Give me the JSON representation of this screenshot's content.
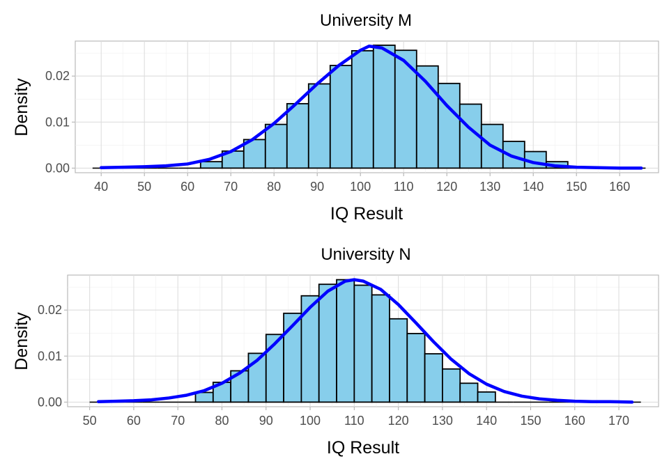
{
  "colors": {
    "bar_fill": "#87ceeb",
    "bar_border": "#000000",
    "density_curve": "#0000ff"
  },
  "chart_data": [
    {
      "type": "bar",
      "title": "University M",
      "xlabel": "IQ Result",
      "ylabel": "Density",
      "grid": true,
      "xlim": [
        34,
        169
      ],
      "ylim": [
        -0.001,
        0.0276
      ],
      "xticks": [
        40,
        50,
        60,
        70,
        80,
        90,
        100,
        110,
        120,
        130,
        140,
        150,
        160
      ],
      "xtick_labels": [
        "40",
        "50",
        "60",
        "70",
        "80",
        "90",
        "100",
        "110",
        "120",
        "130",
        "140",
        "150",
        "160"
      ],
      "yticks": [
        0,
        0.01,
        0.02
      ],
      "ytick_labels": [
        "0.00",
        "0.01",
        "0.02"
      ],
      "histogram": {
        "bin_edges": [
          38,
          43,
          48,
          53,
          58,
          63,
          68,
          73,
          78,
          83,
          88,
          93,
          98,
          103,
          108,
          113,
          118,
          123,
          128,
          133,
          138,
          143,
          148,
          153,
          158,
          163,
          166
        ],
        "densities": [
          0,
          0,
          0,
          0,
          0,
          0.0014,
          0.0037,
          0.0062,
          0.0095,
          0.014,
          0.0183,
          0.0223,
          0.0255,
          0.0267,
          0.0256,
          0.0222,
          0.0184,
          0.0139,
          0.0095,
          0.0058,
          0.0036,
          0.0014,
          0,
          0,
          0,
          0
        ]
      },
      "density_curve": {
        "x": [
          40,
          45,
          50,
          55,
          60,
          65,
          70,
          75,
          80,
          85,
          90,
          95,
          100,
          102,
          105,
          110,
          115,
          120,
          125,
          130,
          135,
          140,
          145,
          150,
          155,
          160,
          165
        ],
        "y": [
          0.0001,
          0.0002,
          0.0003,
          0.0005,
          0.0009,
          0.0019,
          0.0036,
          0.0062,
          0.0097,
          0.0139,
          0.0183,
          0.0223,
          0.0256,
          0.0265,
          0.0261,
          0.0234,
          0.0189,
          0.0136,
          0.0089,
          0.005,
          0.0026,
          0.0012,
          0.0005,
          0.0002,
          0.0001,
          0,
          0
        ]
      }
    },
    {
      "type": "bar",
      "title": "University N",
      "xlabel": "IQ Result",
      "ylabel": "Density",
      "grid": true,
      "xlim": [
        45,
        179
      ],
      "ylim": [
        -0.001,
        0.0276
      ],
      "xticks": [
        50,
        60,
        70,
        80,
        90,
        100,
        110,
        120,
        130,
        140,
        150,
        160,
        170
      ],
      "xtick_labels": [
        "50",
        "60",
        "70",
        "80",
        "90",
        "100",
        "110",
        "120",
        "130",
        "140",
        "150",
        "160",
        "170"
      ],
      "yticks": [
        0,
        0.01,
        0.02
      ],
      "ytick_labels": [
        "0.00",
        "0.01",
        "0.02"
      ],
      "histogram": {
        "bin_edges": [
          50,
          54,
          58,
          62,
          66,
          70,
          74,
          78,
          82,
          86,
          90,
          94,
          98,
          102,
          106,
          110,
          114,
          118,
          122,
          126,
          130,
          134,
          138,
          142,
          146,
          150,
          154,
          158,
          162,
          166,
          170,
          175
        ],
        "densities": [
          0,
          0,
          0,
          0,
          0,
          0,
          0.0021,
          0.0043,
          0.0068,
          0.0106,
          0.0147,
          0.0193,
          0.0231,
          0.0256,
          0.0266,
          0.0254,
          0.0233,
          0.0181,
          0.0149,
          0.0105,
          0.0072,
          0.0041,
          0.0022,
          0,
          0,
          0,
          0,
          0,
          0,
          0,
          0
        ]
      },
      "density_curve": {
        "x": [
          52,
          56,
          60,
          64,
          68,
          72,
          76,
          80,
          84,
          88,
          92,
          96,
          100,
          104,
          108,
          110,
          112,
          116,
          120,
          124,
          128,
          132,
          136,
          140,
          144,
          148,
          152,
          156,
          160,
          164,
          168,
          173
        ],
        "y": [
          0.0001,
          0.0002,
          0.0003,
          0.0005,
          0.0009,
          0.0015,
          0.0025,
          0.0041,
          0.0063,
          0.0091,
          0.0127,
          0.0166,
          0.0206,
          0.0241,
          0.0263,
          0.0266,
          0.0263,
          0.0245,
          0.0212,
          0.0172,
          0.0131,
          0.0093,
          0.0062,
          0.0039,
          0.0023,
          0.0013,
          0.0007,
          0.0004,
          0.0002,
          0.0001,
          0.0001,
          0
        ]
      }
    }
  ]
}
